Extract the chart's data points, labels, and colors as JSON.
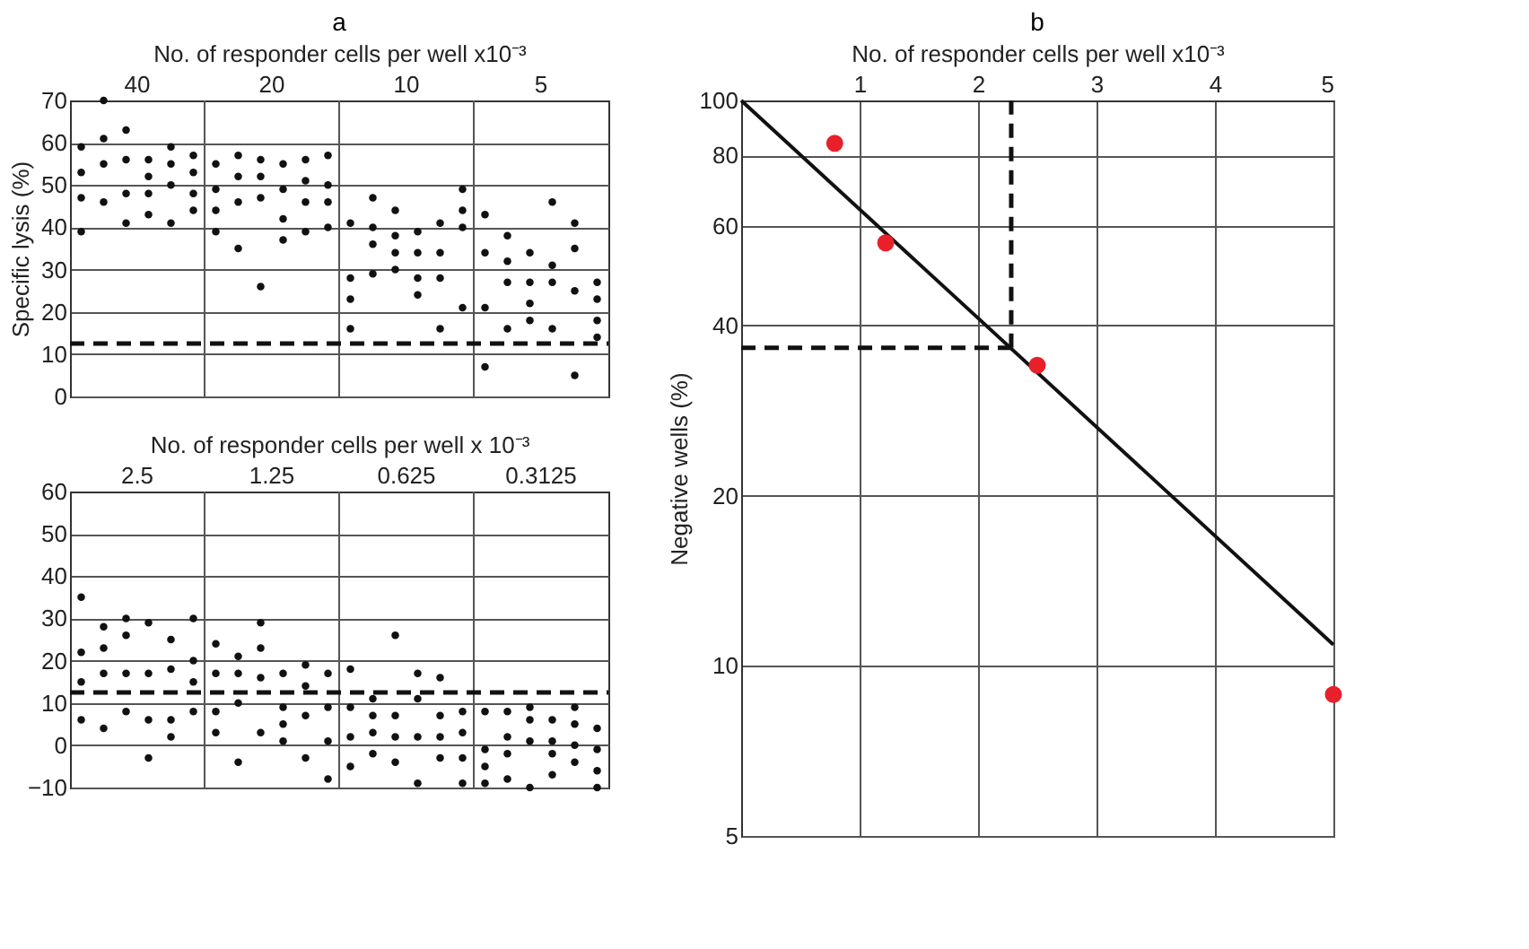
{
  "chart_data": [
    {
      "type": "scatter",
      "title": "a",
      "xlabel": "No. of responder cells per well x10⁻³",
      "ylabel": "Specific lysis (%)",
      "marker": "circle",
      "categories": [
        "40",
        "20",
        "10",
        "5"
      ],
      "series": [
        {
          "type": "scatter",
          "color": "#111111",
          "x": [
            "40",
            "40",
            "40",
            "40",
            "20",
            "20",
            "20",
            "20",
            "10",
            "10",
            "10",
            "10",
            "5",
            "5",
            "5",
            "5"
          ],
          "values": [
            59,
            53,
            47,
            39,
            55,
            49,
            44,
            39,
            41,
            28,
            23,
            16,
            43,
            34,
            21,
            7
          ]
        },
        {
          "type": "scatter",
          "color": "#111111",
          "x": [
            "40",
            "40",
            "40",
            "40",
            "20",
            "20",
            "20",
            "20",
            "10",
            "10",
            "10",
            "10",
            "5",
            "5",
            "5",
            "5"
          ],
          "values": [
            70,
            61,
            55,
            46,
            57,
            52,
            46,
            35,
            47,
            40,
            36,
            29,
            38,
            32,
            27,
            16
          ]
        },
        {
          "type": "scatter",
          "color": "#111111",
          "x": [
            "40",
            "40",
            "40",
            "40",
            "20",
            "20",
            "20",
            "20",
            "10",
            "10",
            "10",
            "10",
            "5",
            "5",
            "5",
            "5"
          ],
          "values": [
            63,
            56,
            48,
            41,
            56,
            52,
            47,
            26,
            44,
            38,
            34,
            30,
            34,
            27,
            22,
            18
          ]
        },
        {
          "type": "scatter",
          "color": "#111111",
          "x": [
            "40",
            "40",
            "40",
            "40",
            "20",
            "20",
            "20",
            "20",
            "10",
            "10",
            "10",
            "10",
            "5",
            "5",
            "5",
            "5"
          ],
          "values": [
            56,
            52,
            48,
            43,
            55,
            49,
            42,
            37,
            39,
            34,
            28,
            24,
            46,
            31,
            27,
            16
          ]
        },
        {
          "type": "scatter",
          "color": "#111111",
          "x": [
            "40",
            "40",
            "40",
            "40",
            "20",
            "20",
            "20",
            "20",
            "10",
            "10",
            "10",
            "10",
            "5",
            "5",
            "5",
            "5"
          ],
          "values": [
            59,
            55,
            50,
            41,
            56,
            51,
            46,
            39,
            41,
            34,
            28,
            16,
            41,
            35,
            25,
            5
          ]
        },
        {
          "type": "scatter",
          "color": "#111111",
          "x": [
            "40",
            "40",
            "40",
            "40",
            "20",
            "20",
            "20",
            "20",
            "10",
            "10",
            "10",
            "10",
            "5",
            "5",
            "5",
            "5"
          ],
          "values": [
            57,
            53,
            48,
            44,
            57,
            50,
            46,
            40,
            49,
            44,
            40,
            21,
            27,
            23,
            18,
            14
          ]
        }
      ],
      "ylim": [
        0,
        70
      ],
      "yticks": [
        0,
        10,
        20,
        30,
        40,
        50,
        60,
        70
      ],
      "grid": true,
      "ref_lines": [
        {
          "axis": "y",
          "value": 12.5,
          "color": "#111111",
          "line_style": "dashed"
        }
      ]
    },
    {
      "type": "scatter",
      "xlabel": "No. of responder cells per well x 10⁻³",
      "marker": "circle",
      "categories": [
        "2.5",
        "1.25",
        "0.625",
        "0.3125"
      ],
      "series": [
        {
          "type": "scatter",
          "color": "#111111",
          "x": [
            "2.5",
            "2.5",
            "2.5",
            "2.5",
            "1.25",
            "1.25",
            "1.25",
            "1.25",
            "0.625",
            "0.625",
            "0.625",
            "0.625",
            "0.3125",
            "0.3125",
            "0.3125",
            "0.3125"
          ],
          "values": [
            35,
            22,
            15,
            6,
            24,
            17,
            8,
            3,
            18,
            9,
            2,
            -5,
            8,
            -1,
            -5,
            -9
          ]
        },
        {
          "type": "scatter",
          "color": "#111111",
          "x": [
            "2.5",
            "2.5",
            "2.5",
            "2.5",
            "1.25",
            "1.25",
            "1.25",
            "1.25",
            "0.625",
            "0.625",
            "0.625",
            "0.625",
            "0.3125",
            "0.3125",
            "0.3125",
            "0.3125"
          ],
          "values": [
            28,
            23,
            17,
            4,
            21,
            17,
            10,
            -4,
            11,
            7,
            3,
            -2,
            8,
            2,
            -2,
            -8
          ]
        },
        {
          "type": "scatter",
          "color": "#111111",
          "x": [
            "2.5",
            "2.5",
            "2.5",
            "2.5",
            "1.25",
            "1.25",
            "1.25",
            "1.25",
            "0.625",
            "0.625",
            "0.625",
            "0.625",
            "0.3125",
            "0.3125",
            "0.3125",
            "0.3125"
          ],
          "values": [
            30,
            26,
            17,
            8,
            29,
            23,
            16,
            3,
            26,
            7,
            2,
            -4,
            9,
            6,
            1,
            -10
          ]
        },
        {
          "type": "scatter",
          "color": "#111111",
          "x": [
            "2.5",
            "2.5",
            "2.5",
            "2.5",
            "1.25",
            "1.25",
            "1.25",
            "1.25",
            "0.625",
            "0.625",
            "0.625",
            "0.625",
            "0.3125",
            "0.3125",
            "0.3125",
            "0.3125"
          ],
          "values": [
            29,
            17,
            6,
            -3,
            17,
            9,
            5,
            1,
            17,
            11,
            2,
            -9,
            6,
            1,
            -2,
            -7
          ]
        },
        {
          "type": "scatter",
          "color": "#111111",
          "x": [
            "2.5",
            "2.5",
            "2.5",
            "2.5",
            "1.25",
            "1.25",
            "1.25",
            "1.25",
            "0.625",
            "0.625",
            "0.625",
            "0.625",
            "0.3125",
            "0.3125",
            "0.3125",
            "0.3125"
          ],
          "values": [
            25,
            18,
            6,
            2,
            19,
            14,
            7,
            -3,
            16,
            7,
            2,
            -3,
            9,
            5,
            0,
            -4
          ]
        },
        {
          "type": "scatter",
          "color": "#111111",
          "x": [
            "2.5",
            "2.5",
            "2.5",
            "2.5",
            "1.25",
            "1.25",
            "1.25",
            "1.25",
            "0.625",
            "0.625",
            "0.625",
            "0.625",
            "0.3125",
            "0.3125",
            "0.3125",
            "0.3125"
          ],
          "values": [
            30,
            20,
            15,
            8,
            17,
            9,
            1,
            -8,
            8,
            3,
            -3,
            -9,
            4,
            -1,
            -6,
            -10
          ]
        }
      ],
      "ylim": [
        -10,
        60
      ],
      "yticks": [
        -10,
        0,
        10,
        20,
        30,
        40,
        50,
        60
      ],
      "grid": true,
      "ref_lines": [
        {
          "axis": "y",
          "value": 12.5,
          "color": "#111111",
          "line_style": "dashed"
        }
      ]
    },
    {
      "type": "scatter",
      "title": "b",
      "xlabel": "No. of responder cells per well x10⁻³",
      "ylabel": "Negative wells (%)",
      "log": "y",
      "grid": true,
      "xlim": [
        0,
        5
      ],
      "xticks": [
        1,
        2,
        3,
        4,
        5
      ],
      "ylim": [
        5,
        100
      ],
      "yticks": [
        5,
        10,
        20,
        40,
        60,
        80,
        100
      ],
      "series": [
        {
          "type": "line",
          "x": [
            0,
            5
          ],
          "values": [
            100,
            10.9
          ],
          "color": "#111111",
          "line_style": "solid",
          "marker": "none"
        },
        {
          "x": [
            0.79,
            1.22,
            2.5,
            5.0
          ],
          "values": [
            84,
            56,
            34,
            8.9
          ],
          "color": "#e8202a",
          "marker": "circle"
        }
      ],
      "ref_lines": [
        {
          "axis": "x",
          "value": 2.28,
          "color": "#111111",
          "line_style": "dashed"
        },
        {
          "axis": "y",
          "value": 36.5,
          "color": "#111111",
          "line_style": "dashed"
        }
      ]
    }
  ]
}
